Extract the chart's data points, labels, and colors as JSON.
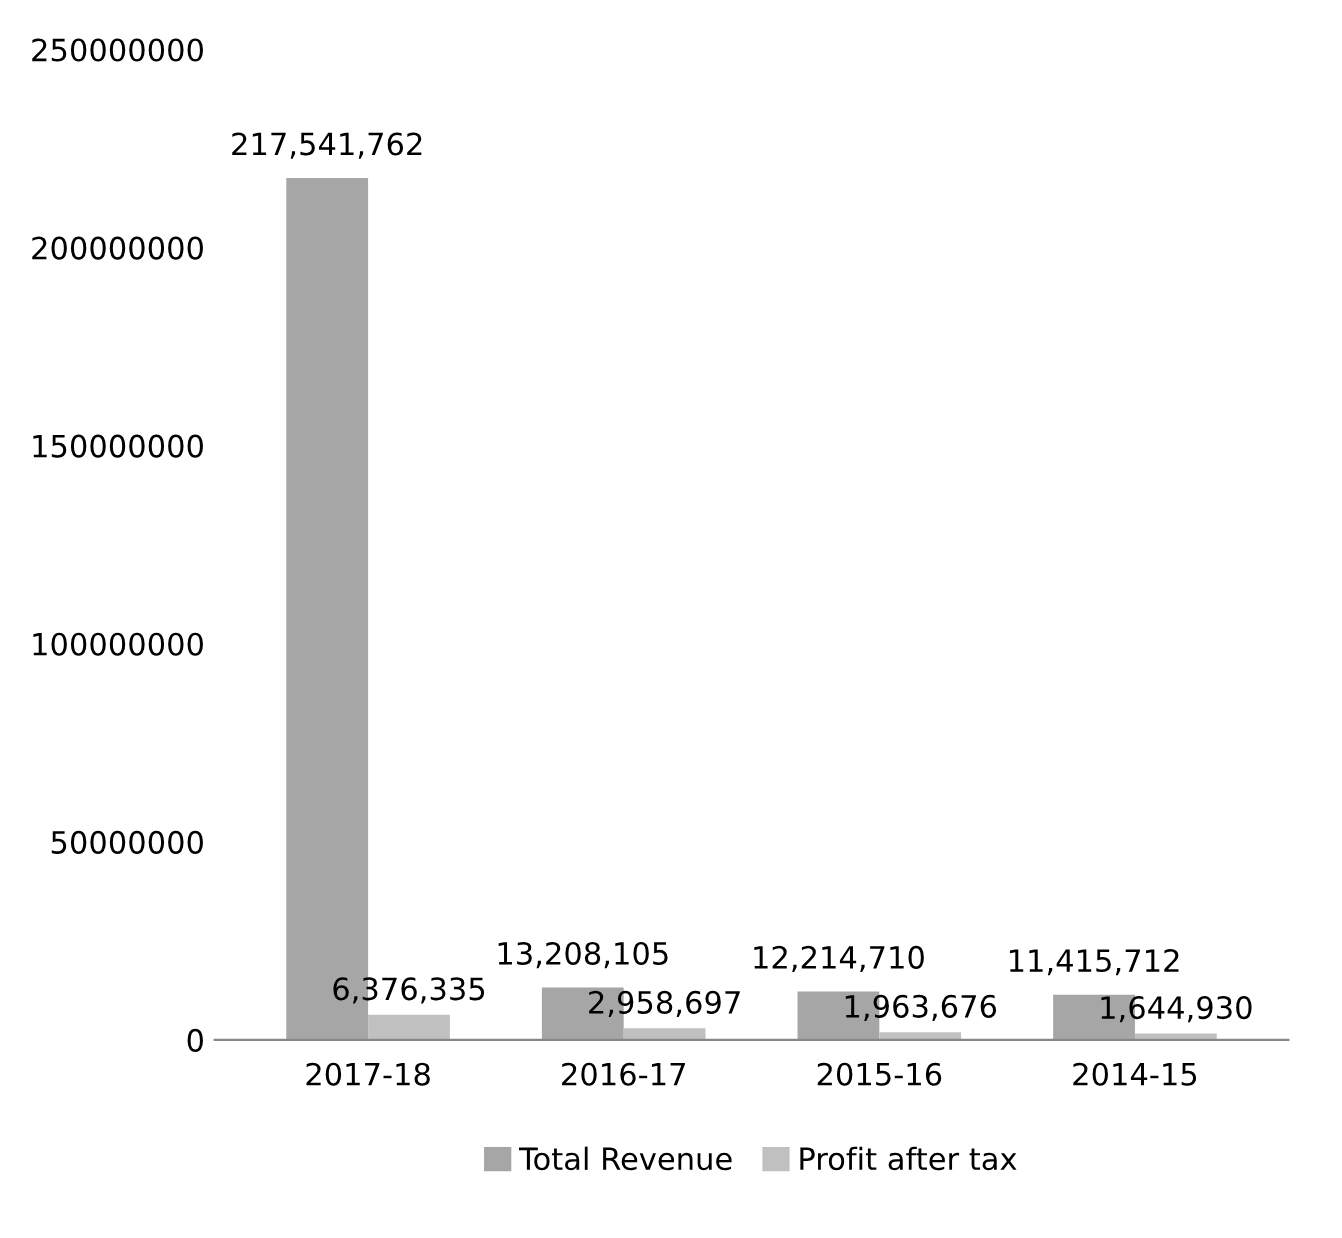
{
  "chart_data": {
    "type": "bar",
    "categories": [
      "2017-18",
      "2016-17",
      "2015-16",
      "2014-15"
    ],
    "series": [
      {
        "name": "Total Revenue",
        "color": "#a6a6a6",
        "values": [
          217541762,
          13208105,
          12214710,
          11415712
        ],
        "value_labels": [
          "217,541,762",
          "13,208,105",
          "12,214,710",
          "11,415,712"
        ]
      },
      {
        "name": "Profit after tax",
        "color": "#c0c0c0",
        "values": [
          6376335,
          2958697,
          1963676,
          1644930
        ],
        "value_labels": [
          "6,376,335",
          "2,958,697",
          "1,963,676",
          "1,644,930"
        ]
      }
    ],
    "ylim": [
      0,
      250000000
    ],
    "yticks": [
      0,
      50000000,
      100000000,
      150000000,
      200000000,
      250000000
    ],
    "grid": false,
    "legend": "bottom"
  }
}
